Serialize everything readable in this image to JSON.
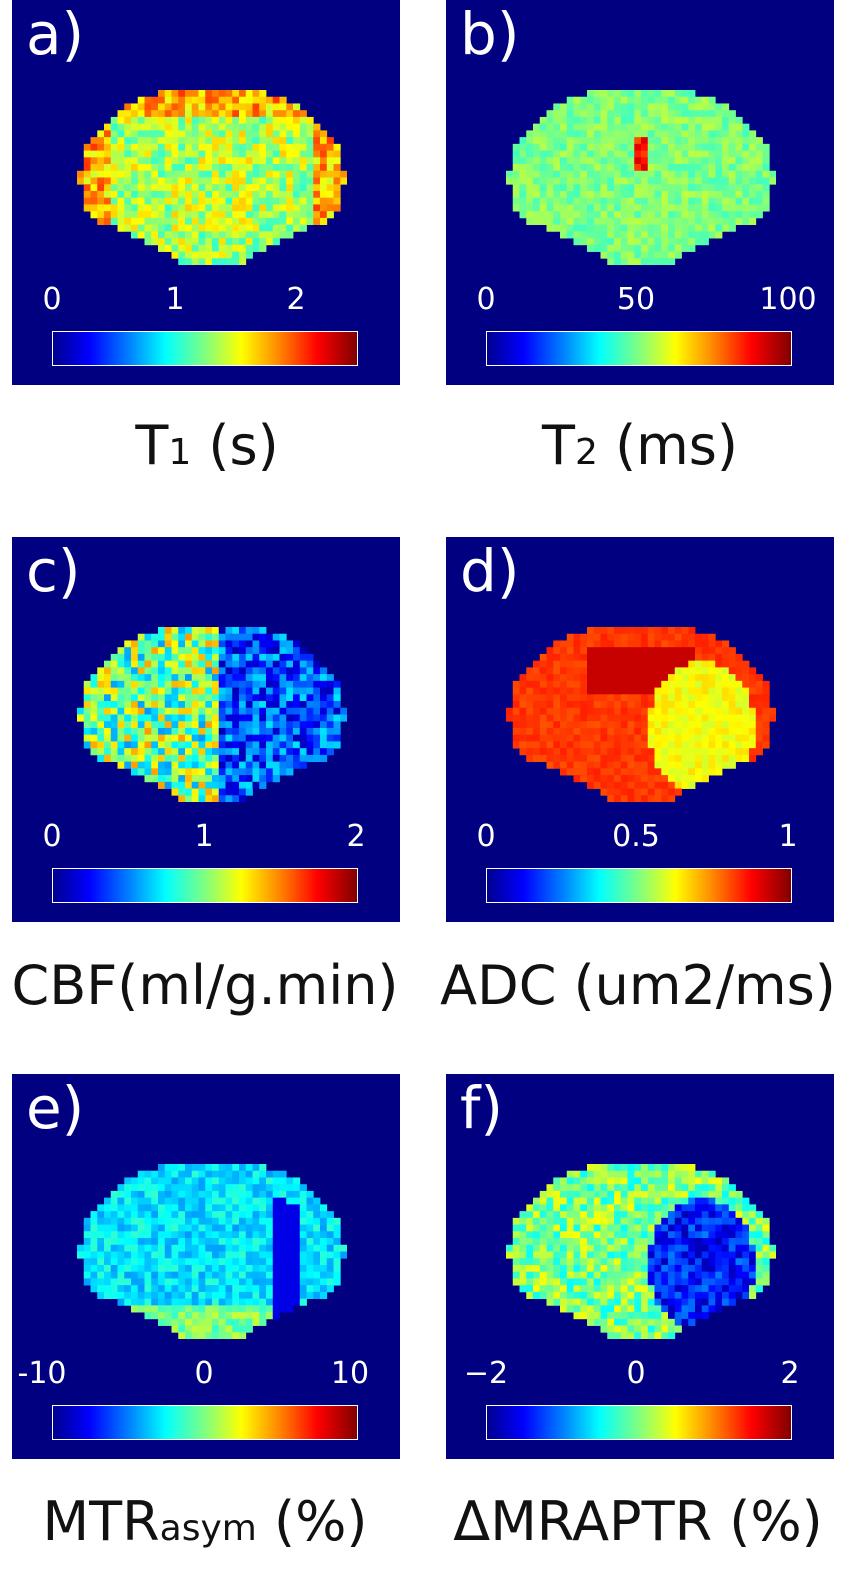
{
  "colors": {
    "background": "#000080",
    "text": "#ffffff",
    "caption": "#111111"
  },
  "panels": [
    {
      "letter": "a)",
      "ticks": [
        "0",
        "1",
        "2"
      ],
      "caption_main": "T",
      "caption_sub": "1",
      "caption_rest": " (s)",
      "map": "t1"
    },
    {
      "letter": "b)",
      "ticks": [
        "0",
        "50",
        "100"
      ],
      "caption_main": "T",
      "caption_sub": "2",
      "caption_rest": " (ms)",
      "map": "t2"
    },
    {
      "letter": "c)",
      "ticks": [
        "0",
        "1",
        "2"
      ],
      "caption_main": "CBF(ml/g.min)",
      "caption_sub": "",
      "caption_rest": "",
      "map": "cbf"
    },
    {
      "letter": "d)",
      "ticks": [
        "0",
        "0.5",
        "1"
      ],
      "caption_main": "ADC (um2/ms)",
      "caption_sub": "",
      "caption_rest": "",
      "map": "adc"
    },
    {
      "letter": "e)",
      "ticks": [
        "-10",
        "0",
        "10"
      ],
      "caption_main": "MTR",
      "caption_sub": "asym",
      "caption_rest": " (%)",
      "map": "mtr"
    },
    {
      "letter": "f)",
      "ticks": [
        "−2",
        "0",
        "2"
      ],
      "caption_main": "ΔMRAPTR (%)",
      "caption_sub": "",
      "caption_rest": "",
      "map": "aptr"
    }
  ]
}
